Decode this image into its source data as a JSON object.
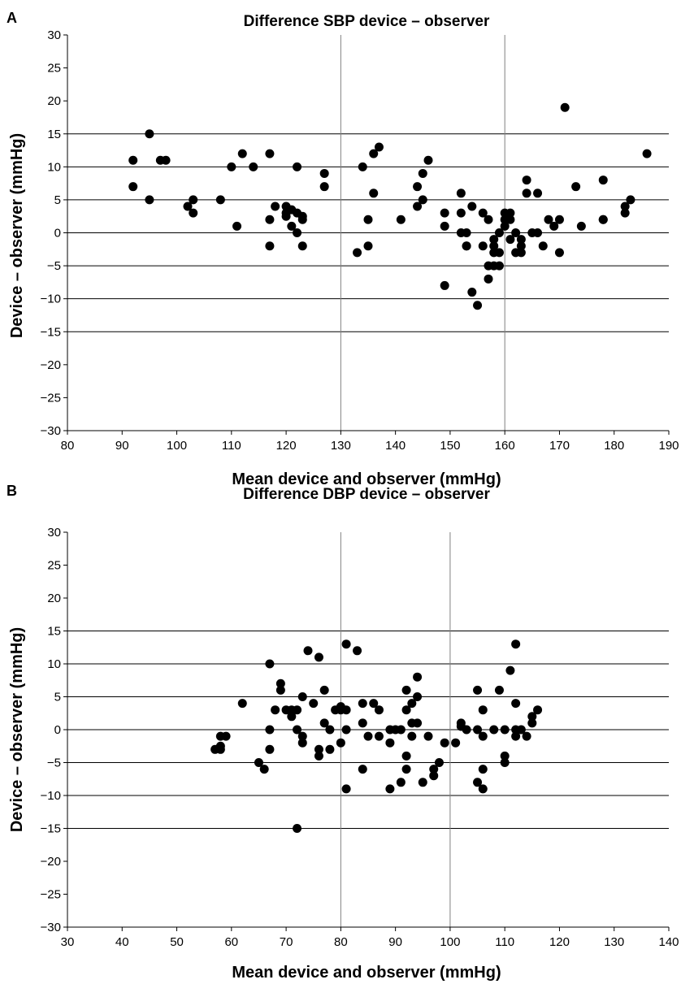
{
  "chart_data": [
    {
      "type": "scatter",
      "panel_label": "A",
      "title": "Difference SBP device – observer",
      "xlabel": "Mean device and observer (mmHg)",
      "ylabel": "Device – observer (mmHg)",
      "xlim": [
        80,
        190
      ],
      "ylim": [
        -30,
        30
      ],
      "xticks": [
        80,
        90,
        100,
        110,
        120,
        130,
        140,
        150,
        160,
        170,
        180,
        190
      ],
      "yticks": [
        30,
        25,
        20,
        15,
        10,
        5,
        0,
        -5,
        -10,
        -15,
        -20,
        -25,
        -30
      ],
      "xtick_labels": [
        "80",
        "90",
        "100",
        "110",
        "120",
        "130",
        "140",
        "150",
        "160",
        "170",
        "180",
        "190"
      ],
      "ytick_labels": [
        "30",
        "25",
        "20",
        "15",
        "10",
        "5",
        "0",
        "−5",
        "−10",
        "−15",
        "−20",
        "−25",
        "−30"
      ],
      "hlines": [
        15,
        10,
        5,
        0,
        -5,
        -10,
        -15
      ],
      "vlines": [
        130,
        160
      ],
      "points": [
        [
          92,
          11
        ],
        [
          92,
          7
        ],
        [
          95,
          15
        ],
        [
          95,
          5
        ],
        [
          97,
          11
        ],
        [
          98,
          11
        ],
        [
          102,
          4
        ],
        [
          103,
          5
        ],
        [
          103,
          3
        ],
        [
          108,
          5
        ],
        [
          110,
          10
        ],
        [
          111,
          1
        ],
        [
          112,
          12
        ],
        [
          114,
          10
        ],
        [
          117,
          12
        ],
        [
          117,
          2
        ],
        [
          117,
          -2
        ],
        [
          118,
          4
        ],
        [
          120,
          4
        ],
        [
          120,
          3
        ],
        [
          120,
          2.5
        ],
        [
          121,
          3.5
        ],
        [
          121,
          1
        ],
        [
          122,
          10
        ],
        [
          122,
          3
        ],
        [
          122,
          0
        ],
        [
          123,
          2.5
        ],
        [
          123,
          2
        ],
        [
          123,
          -2
        ],
        [
          127,
          9
        ],
        [
          127,
          7
        ],
        [
          133,
          -3
        ],
        [
          134,
          10
        ],
        [
          135,
          2
        ],
        [
          135,
          -2
        ],
        [
          136,
          12
        ],
        [
          136,
          6
        ],
        [
          137,
          13
        ],
        [
          141,
          2
        ],
        [
          144,
          7
        ],
        [
          144,
          4
        ],
        [
          145,
          9
        ],
        [
          145,
          5
        ],
        [
          146,
          11
        ],
        [
          149,
          3
        ],
        [
          149,
          1
        ],
        [
          149,
          -8
        ],
        [
          152,
          6
        ],
        [
          152,
          3
        ],
        [
          152,
          0
        ],
        [
          153,
          -2
        ],
        [
          153,
          0
        ],
        [
          153,
          -2
        ],
        [
          154,
          4
        ],
        [
          154,
          -9
        ],
        [
          155,
          -11
        ],
        [
          156,
          3
        ],
        [
          156,
          -2
        ],
        [
          157,
          2
        ],
        [
          157,
          -5
        ],
        [
          157,
          -7
        ],
        [
          158,
          -1
        ],
        [
          158,
          -2
        ],
        [
          158,
          -3
        ],
        [
          158,
          -5
        ],
        [
          159,
          0
        ],
        [
          159,
          -3
        ],
        [
          159,
          -5
        ],
        [
          160,
          2
        ],
        [
          160,
          3
        ],
        [
          160,
          1
        ],
        [
          161,
          3
        ],
        [
          161,
          -1
        ],
        [
          161,
          2
        ],
        [
          162,
          0
        ],
        [
          162,
          -3
        ],
        [
          163,
          -1
        ],
        [
          163,
          -2
        ],
        [
          163,
          -3
        ],
        [
          164,
          8
        ],
        [
          164,
          6
        ],
        [
          165,
          0
        ],
        [
          166,
          6
        ],
        [
          166,
          0
        ],
        [
          167,
          -2
        ],
        [
          168,
          2
        ],
        [
          169,
          1
        ],
        [
          170,
          2
        ],
        [
          170,
          -3
        ],
        [
          171,
          19
        ],
        [
          173,
          7
        ],
        [
          174,
          1
        ],
        [
          178,
          8
        ],
        [
          178,
          2
        ],
        [
          178,
          2
        ],
        [
          182,
          4
        ],
        [
          182,
          3
        ],
        [
          183,
          5
        ],
        [
          186,
          12
        ]
      ]
    },
    {
      "type": "scatter",
      "panel_label": "B",
      "title": "Difference DBP device – observer",
      "xlabel": "Mean device and observer (mmHg)",
      "ylabel": "Device – observer (mmHg)",
      "xlim": [
        30,
        140
      ],
      "ylim": [
        -30,
        30
      ],
      "xticks": [
        30,
        40,
        50,
        60,
        70,
        80,
        90,
        100,
        110,
        120,
        130,
        140
      ],
      "yticks": [
        30,
        25,
        20,
        15,
        10,
        5,
        0,
        -5,
        -10,
        -15,
        -20,
        -25,
        -30
      ],
      "xtick_labels": [
        "30",
        "40",
        "50",
        "60",
        "70",
        "80",
        "90",
        "100",
        "110",
        "120",
        "130",
        "140"
      ],
      "ytick_labels": [
        "30",
        "25",
        "20",
        "15",
        "10",
        "5",
        "0",
        "−5",
        "−10",
        "−15",
        "−20",
        "−25",
        "−30"
      ],
      "hlines": [
        15,
        10,
        5,
        0,
        -5,
        -10,
        -15
      ],
      "vlines": [
        80,
        100
      ],
      "points": [
        [
          57,
          -3
        ],
        [
          58,
          -1
        ],
        [
          58,
          -3
        ],
        [
          58,
          -2.5
        ],
        [
          59,
          -1
        ],
        [
          62,
          4
        ],
        [
          65,
          -5
        ],
        [
          66,
          -6
        ],
        [
          67,
          10
        ],
        [
          67,
          0
        ],
        [
          67,
          -3
        ],
        [
          68,
          3
        ],
        [
          69,
          7
        ],
        [
          69,
          6
        ],
        [
          70,
          3
        ],
        [
          71,
          3
        ],
        [
          71,
          2
        ],
        [
          72,
          3
        ],
        [
          72,
          0
        ],
        [
          72,
          -15
        ],
        [
          73,
          5
        ],
        [
          73,
          -1
        ],
        [
          73,
          -2
        ],
        [
          74,
          12
        ],
        [
          75,
          4
        ],
        [
          76,
          11
        ],
        [
          76,
          -3
        ],
        [
          76,
          -4
        ],
        [
          77,
          6
        ],
        [
          77,
          1
        ],
        [
          78,
          0
        ],
        [
          78,
          -3
        ],
        [
          79,
          3
        ],
        [
          80,
          3
        ],
        [
          80,
          3.5
        ],
        [
          80,
          -2
        ],
        [
          81,
          3
        ],
        [
          81,
          13
        ],
        [
          81,
          0
        ],
        [
          81,
          -9
        ],
        [
          83,
          12
        ],
        [
          84,
          4
        ],
        [
          84,
          1
        ],
        [
          84,
          -6
        ],
        [
          85,
          -1
        ],
        [
          86,
          4
        ],
        [
          87,
          3
        ],
        [
          87,
          -1
        ],
        [
          89,
          0
        ],
        [
          89,
          -2
        ],
        [
          89,
          -9
        ],
        [
          90,
          0
        ],
        [
          91,
          0
        ],
        [
          91,
          -8
        ],
        [
          92,
          6
        ],
        [
          92,
          3
        ],
        [
          92,
          -4
        ],
        [
          92,
          -6
        ],
        [
          93,
          4
        ],
        [
          93,
          1
        ],
        [
          93,
          -1
        ],
        [
          94,
          8
        ],
        [
          94,
          5
        ],
        [
          94,
          1
        ],
        [
          95,
          -8
        ],
        [
          96,
          -1
        ],
        [
          97,
          -6
        ],
        [
          97,
          -7
        ],
        [
          98,
          -5
        ],
        [
          99,
          -2
        ],
        [
          101,
          -2
        ],
        [
          102,
          1
        ],
        [
          102,
          0.5
        ],
        [
          103,
          0
        ],
        [
          105,
          6
        ],
        [
          105,
          0
        ],
        [
          105,
          -8
        ],
        [
          106,
          3
        ],
        [
          106,
          -1
        ],
        [
          106,
          -6
        ],
        [
          106,
          -9
        ],
        [
          108,
          0
        ],
        [
          109,
          6
        ],
        [
          110,
          0
        ],
        [
          110,
          -4
        ],
        [
          110,
          -5
        ],
        [
          111,
          9
        ],
        [
          112,
          13
        ],
        [
          112,
          4
        ],
        [
          112,
          0
        ],
        [
          112,
          -1
        ],
        [
          113,
          0
        ],
        [
          114,
          -1
        ],
        [
          115,
          2
        ],
        [
          115,
          1
        ],
        [
          116,
          3
        ]
      ]
    }
  ]
}
